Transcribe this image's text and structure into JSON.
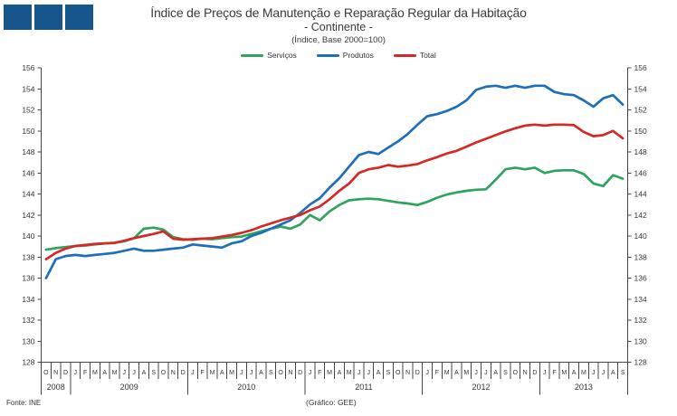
{
  "logo": {
    "square_color": "#17568C",
    "square_count": 3
  },
  "title": {
    "line1": "Índice de Preços de Manutenção e Reparação Regular da Habitação",
    "line2": "- Continente -",
    "line3": "(Índice, Base 2000=100)"
  },
  "footer": {
    "source": "Fonte: INE",
    "credit": "(Gráfico: GEE)"
  },
  "colors": {
    "axis": "#444444",
    "text": "#333333"
  },
  "chart_data": {
    "type": "line",
    "title": "Índice de Preços de Manutenção e Reparação Regular da Habitação - Continente (Índice, Base 2000=100)",
    "xlabel": "",
    "ylabel": "",
    "ylim": [
      128,
      156
    ],
    "grid": false,
    "legend_position": "top",
    "y_ticks": [
      156,
      154,
      152,
      150,
      148,
      146,
      144,
      142,
      140,
      138,
      136,
      134,
      132,
      130,
      128
    ],
    "x_month_labels": [
      "O",
      "N",
      "D",
      "J",
      "F",
      "M",
      "A",
      "M",
      "J",
      "J",
      "A",
      "S",
      "O",
      "N",
      "D",
      "J",
      "F",
      "M",
      "A",
      "M",
      "J",
      "J",
      "A",
      "S",
      "O",
      "N",
      "D",
      "J",
      "F",
      "M",
      "A",
      "M",
      "J",
      "J",
      "A",
      "S",
      "O",
      "N",
      "D",
      "J",
      "F",
      "M",
      "A",
      "M",
      "J",
      "J",
      "A",
      "S",
      "O",
      "N",
      "D",
      "J",
      "F",
      "M",
      "A",
      "M",
      "J",
      "J",
      "A",
      "S"
    ],
    "x_years": [
      {
        "label": "2008",
        "months": 3
      },
      {
        "label": "2009",
        "months": 12
      },
      {
        "label": "2010",
        "months": 12
      },
      {
        "label": "2011",
        "months": 12
      },
      {
        "label": "2012",
        "months": 12
      },
      {
        "label": "2013",
        "months": 9
      }
    ],
    "series": [
      {
        "name": "Serviços",
        "color": "#2FA45F",
        "values": [
          138.7,
          138.85,
          138.95,
          139.05,
          139.1,
          139.2,
          139.3,
          139.35,
          139.5,
          139.8,
          140.7,
          140.8,
          140.6,
          139.9,
          139.7,
          139.65,
          139.75,
          139.7,
          139.8,
          139.9,
          139.95,
          140.2,
          140.45,
          140.7,
          140.9,
          140.7,
          141.1,
          142.0,
          141.5,
          142.35,
          142.95,
          143.4,
          143.5,
          143.55,
          143.5,
          143.35,
          143.2,
          143.1,
          142.95,
          143.25,
          143.65,
          143.95,
          144.15,
          144.3,
          144.4,
          144.45,
          145.35,
          146.35,
          146.5,
          146.35,
          146.5,
          146.0,
          146.2,
          146.25,
          146.25,
          145.9,
          145.0,
          144.75,
          145.8,
          145.45
        ]
      },
      {
        "name": "Produtos",
        "color": "#1E6FB8",
        "values": [
          136.0,
          137.8,
          138.1,
          138.2,
          138.1,
          138.2,
          138.3,
          138.4,
          138.6,
          138.8,
          138.6,
          138.6,
          138.7,
          138.8,
          138.9,
          139.2,
          139.1,
          139.0,
          138.9,
          139.3,
          139.5,
          140.0,
          140.3,
          140.7,
          141.1,
          141.5,
          142.2,
          143.0,
          143.6,
          144.6,
          145.5,
          146.6,
          147.7,
          148.0,
          147.8,
          148.4,
          149.0,
          149.7,
          150.6,
          151.4,
          151.6,
          151.9,
          152.3,
          152.9,
          153.9,
          154.2,
          154.3,
          154.1,
          154.3,
          154.1,
          154.3,
          154.3,
          153.7,
          153.5,
          153.4,
          152.9,
          152.3,
          153.1,
          153.4,
          152.5
        ]
      },
      {
        "name": "Total",
        "color": "#D42A26",
        "values": [
          137.8,
          138.4,
          138.8,
          139.05,
          139.15,
          139.25,
          139.3,
          139.35,
          139.55,
          139.8,
          140.0,
          140.2,
          140.45,
          139.75,
          139.65,
          139.7,
          139.75,
          139.8,
          139.95,
          140.1,
          140.3,
          140.55,
          140.9,
          141.2,
          141.5,
          141.75,
          142.0,
          142.45,
          142.8,
          143.5,
          144.3,
          145.0,
          146.0,
          146.35,
          146.5,
          146.75,
          146.6,
          146.7,
          146.85,
          147.2,
          147.5,
          147.85,
          148.1,
          148.5,
          148.9,
          149.25,
          149.6,
          149.95,
          150.25,
          150.5,
          150.6,
          150.5,
          150.6,
          150.6,
          150.55,
          149.9,
          149.5,
          149.6,
          150.0,
          149.3
        ]
      }
    ]
  }
}
